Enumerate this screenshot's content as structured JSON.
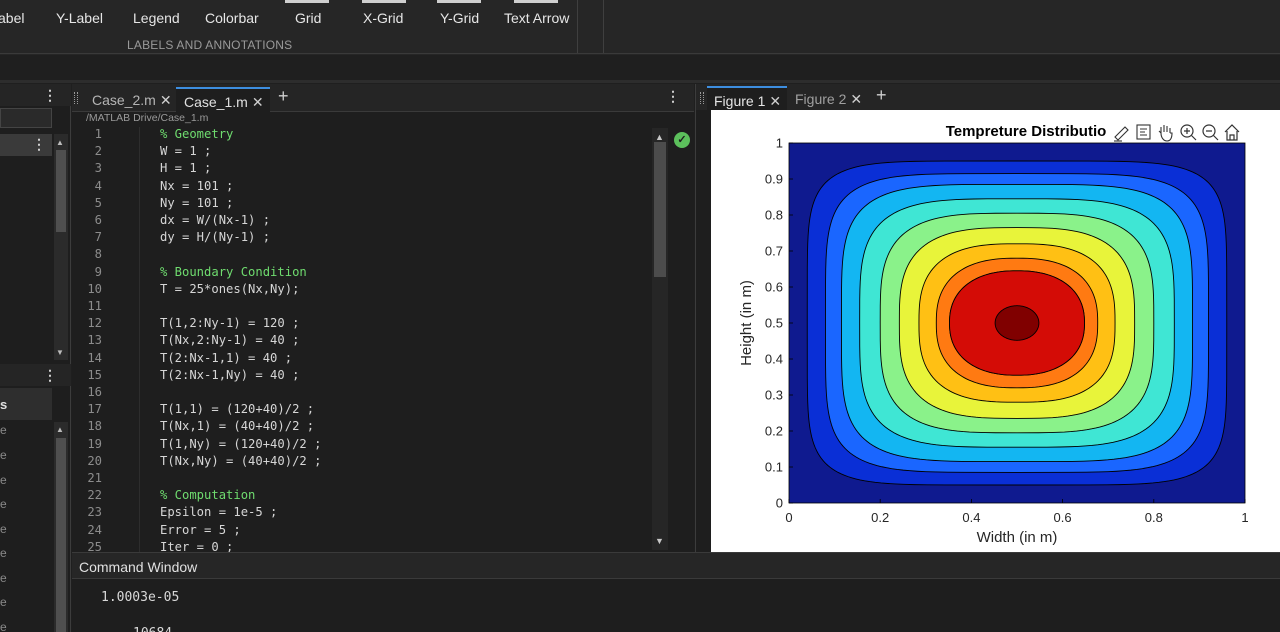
{
  "toolstrip": {
    "buttons": [
      "abel",
      "Y-Label",
      "Legend",
      "Colorbar",
      "Grid",
      "X-Grid",
      "Y-Grid",
      "Text Arrow"
    ],
    "group_label": "LABELS AND ANNOTATIONS"
  },
  "left_pane": {
    "panel_header_label": "s",
    "row_fragment": "e"
  },
  "editor": {
    "tabs": [
      {
        "label": "Case_2.m",
        "active": false
      },
      {
        "label": "Case_1.m",
        "active": true
      }
    ],
    "path": "/MATLAB Drive/Case_1.m",
    "status_icon": "check-circle-icon",
    "lines": [
      {
        "n": "1",
        "text": "% Geometry",
        "comment": true
      },
      {
        "n": "2",
        "text": "W = 1 ;",
        "comment": false
      },
      {
        "n": "3",
        "text": "H = 1 ;",
        "comment": false
      },
      {
        "n": "4",
        "text": "Nx = 101 ;",
        "comment": false
      },
      {
        "n": "5",
        "text": "Ny = 101 ;",
        "comment": false
      },
      {
        "n": "6",
        "text": "dx = W/(Nx-1) ;",
        "comment": false
      },
      {
        "n": "7",
        "text": "dy = H/(Ny-1) ;",
        "comment": false
      },
      {
        "n": "8",
        "text": "",
        "comment": false
      },
      {
        "n": "9",
        "text": "% Boundary Condition",
        "comment": true
      },
      {
        "n": "10",
        "text": "T = 25*ones(Nx,Ny);",
        "comment": false
      },
      {
        "n": "11",
        "text": "",
        "comment": false
      },
      {
        "n": "12",
        "text": "T(1,2:Ny-1) = 120 ;",
        "comment": false
      },
      {
        "n": "13",
        "text": "T(Nx,2:Ny-1) = 40 ;",
        "comment": false
      },
      {
        "n": "14",
        "text": "T(2:Nx-1,1) = 40 ;",
        "comment": false
      },
      {
        "n": "15",
        "text": "T(2:Nx-1,Ny) = 40 ;",
        "comment": false
      },
      {
        "n": "16",
        "text": "",
        "comment": false
      },
      {
        "n": "17",
        "text": "T(1,1) = (120+40)/2 ;",
        "comment": false
      },
      {
        "n": "18",
        "text": "T(Nx,1) = (40+40)/2 ;",
        "comment": false
      },
      {
        "n": "19",
        "text": "T(1,Ny) = (120+40)/2 ;",
        "comment": false
      },
      {
        "n": "20",
        "text": "T(Nx,Ny) = (40+40)/2 ;",
        "comment": false
      },
      {
        "n": "21",
        "text": "",
        "comment": false
      },
      {
        "n": "22",
        "text": "% Computation",
        "comment": true
      },
      {
        "n": "23",
        "text": "Epsilon = 1e-5 ;",
        "comment": false
      },
      {
        "n": "24",
        "text": "Error = 5 ;",
        "comment": false
      },
      {
        "n": "25",
        "text": "Iter = 0 ;",
        "comment": false
      }
    ]
  },
  "figures": {
    "tabs": [
      {
        "label": "Figure 1",
        "active": true
      },
      {
        "label": "Figure 2",
        "active": false
      }
    ],
    "toolbar_icons": [
      "edit-plot-icon",
      "datatip-icon",
      "pan-hand-icon",
      "zoom-in-icon",
      "zoom-out-icon",
      "home-icon"
    ]
  },
  "chart_data": {
    "type": "contourf",
    "title": "Tempreture Distributio",
    "xlabel": "Width (in m)",
    "ylabel": "Height (in m)",
    "xlim": [
      0,
      1
    ],
    "ylim": [
      0,
      1
    ],
    "xticks": [
      "0",
      "0.2",
      "0.4",
      "0.6",
      "0.8",
      "1"
    ],
    "yticks": [
      "0",
      "0.1",
      "0.2",
      "0.3",
      "0.4",
      "0.5",
      "0.6",
      "0.7",
      "0.8",
      "0.9",
      "1"
    ],
    "center": [
      0.5,
      0.5
    ],
    "contour_levels": [
      {
        "color": "#0f1a8f",
        "x_half_extent": 0.5,
        "y_half_extent": 0.5,
        "squareness": 1.0
      },
      {
        "color": "#0a2fd6",
        "x_half_extent": 0.46,
        "y_half_extent": 0.45,
        "squareness": 6.0
      },
      {
        "color": "#1a66ff",
        "x_half_extent": 0.42,
        "y_half_extent": 0.415,
        "squareness": 5.0
      },
      {
        "color": "#13b6f2",
        "x_half_extent": 0.385,
        "y_half_extent": 0.385,
        "squareness": 4.4
      },
      {
        "color": "#3fe6d4",
        "x_half_extent": 0.345,
        "y_half_extent": 0.345,
        "squareness": 3.9
      },
      {
        "color": "#8af28a",
        "x_half_extent": 0.3,
        "y_half_extent": 0.305,
        "squareness": 3.5
      },
      {
        "color": "#e8f43a",
        "x_half_extent": 0.258,
        "y_half_extent": 0.265,
        "squareness": 3.1
      },
      {
        "color": "#ffc014",
        "x_half_extent": 0.215,
        "y_half_extent": 0.22,
        "squareness": 2.8
      },
      {
        "color": "#ff7a12",
        "x_half_extent": 0.177,
        "y_half_extent": 0.18,
        "squareness": 2.5
      },
      {
        "color": "#f0210e",
        "x_half_extent": 0.148,
        "y_half_extent": 0.145,
        "squareness": 2.3
      },
      {
        "color": "#d40c06",
        "x_half_extent": 0.148,
        "y_half_extent": 0.145,
        "squareness": 2.3
      },
      {
        "color": "#800000",
        "x_half_extent": 0.048,
        "y_half_extent": 0.048,
        "squareness": 2.0
      }
    ]
  },
  "command_window": {
    "title": "Command Window",
    "output": [
      "1.0003e-05",
      "10684"
    ]
  }
}
